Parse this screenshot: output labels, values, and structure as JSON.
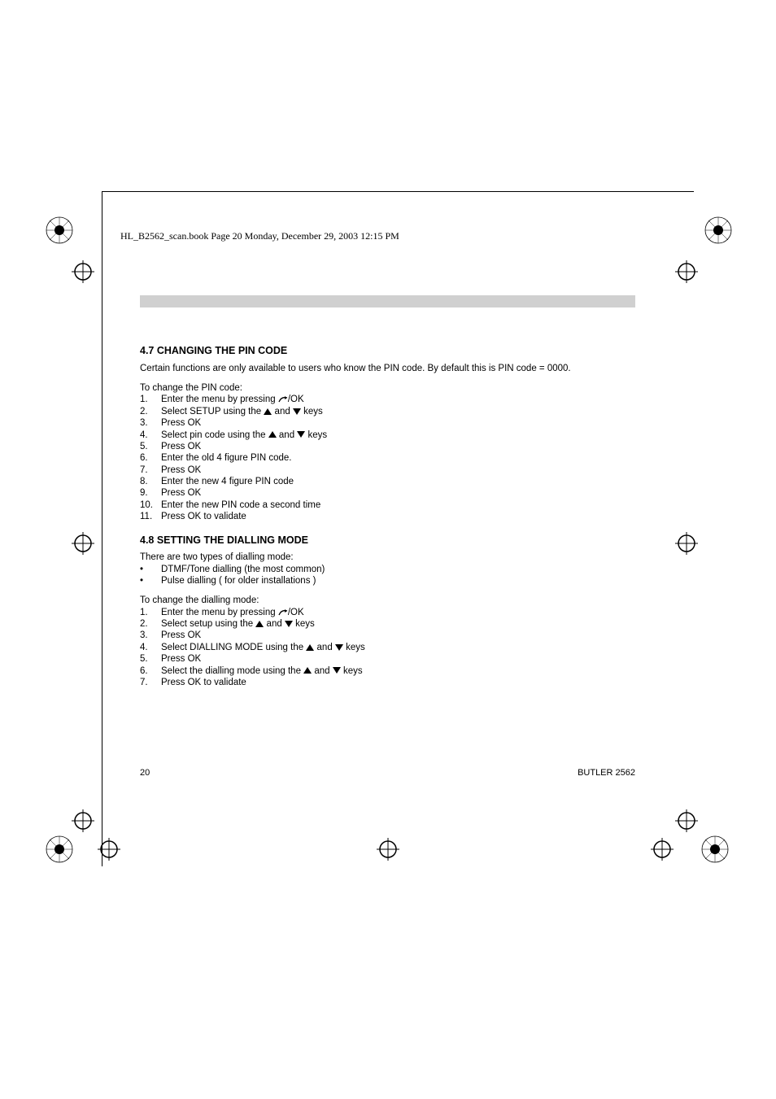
{
  "header": {
    "text": "HL_B2562_scan.book  Page 20  Monday, December 29, 2003  12:15 PM"
  },
  "section47": {
    "heading": "4.7 CHANGING THE PIN CODE",
    "intro": "Certain functions are only available to users who know the PIN code. By default this is PIN code = 0000.",
    "lead": "To change the PIN code:",
    "steps": [
      {
        "n": "1.",
        "pre": "Enter the menu by pressing ",
        "icon": "curve",
        "post": "/OK"
      },
      {
        "n": "2.",
        "pre": "Select SETUP using the ",
        "icon": "updown",
        "post": "  keys"
      },
      {
        "n": "3.",
        "text": "Press OK"
      },
      {
        "n": "4.",
        "pre": "Select pin code using the ",
        "icon": "updown",
        "post": " keys"
      },
      {
        "n": "5.",
        "text": "Press OK"
      },
      {
        "n": "6.",
        "text": "Enter the old 4 figure PIN code."
      },
      {
        "n": "7.",
        "text": "Press OK"
      },
      {
        "n": "8.",
        "text": "Enter the new 4 figure PIN code"
      },
      {
        "n": "9.",
        "text": "Press OK"
      },
      {
        "n": "10.",
        "text": "Enter the new PIN code a second time"
      },
      {
        "n": "11.",
        "text": "Press OK to validate"
      }
    ]
  },
  "section48": {
    "heading": "4.8 SETTING THE DIALLING MODE",
    "intro": "There are two types of dialling mode:",
    "bullets": [
      "DTMF/Tone dialling (the most common)",
      "Pulse dialling ( for older installations )"
    ],
    "lead": "To change the dialling mode:",
    "steps": [
      {
        "n": "1.",
        "pre": "Enter the menu by pressing ",
        "icon": "curve",
        "post": "/OK"
      },
      {
        "n": "2.",
        "pre": "Select setup using the ",
        "icon": "updown",
        "post": " keys"
      },
      {
        "n": "3.",
        "text": "Press OK"
      },
      {
        "n": "4.",
        "pre": "Select DIALLING MODE using the ",
        "icon": "updown",
        "post": " keys"
      },
      {
        "n": "5.",
        "text": "Press OK"
      },
      {
        "n": "6.",
        "pre": "Select the dialling mode using the ",
        "icon": "updown",
        "post": " keys"
      },
      {
        "n": "7.",
        "text": "Press OK to validate"
      }
    ]
  },
  "footer": {
    "page": "20",
    "model": "BUTLER 2562"
  },
  "colors": {
    "grey_bar": "#d0d0d0",
    "text": "#000000",
    "background": "#ffffff"
  }
}
